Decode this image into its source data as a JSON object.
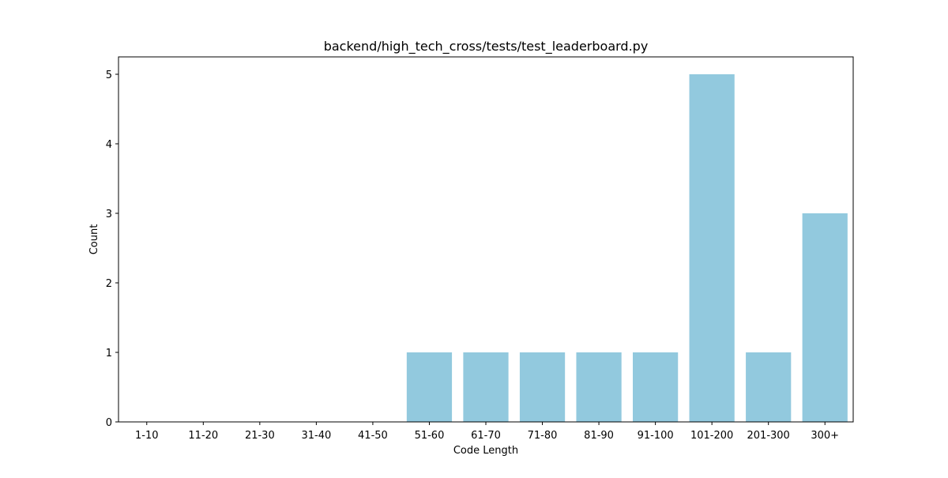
{
  "chart_data": {
    "type": "bar",
    "title": "backend/high_tech_cross/tests/test_leaderboard.py",
    "xlabel": "Code Length",
    "ylabel": "Count",
    "categories": [
      "1-10",
      "11-20",
      "21-30",
      "31-40",
      "41-50",
      "51-60",
      "61-70",
      "71-80",
      "81-90",
      "91-100",
      "101-200",
      "201-300",
      "300+"
    ],
    "values": [
      0,
      0,
      0,
      0,
      0,
      1,
      1,
      1,
      1,
      1,
      5,
      1,
      3
    ],
    "ylim": [
      0,
      5.25
    ],
    "yticks": [
      0,
      1,
      2,
      3,
      4,
      5
    ],
    "grid": false,
    "bar_color": "#92c9de"
  }
}
